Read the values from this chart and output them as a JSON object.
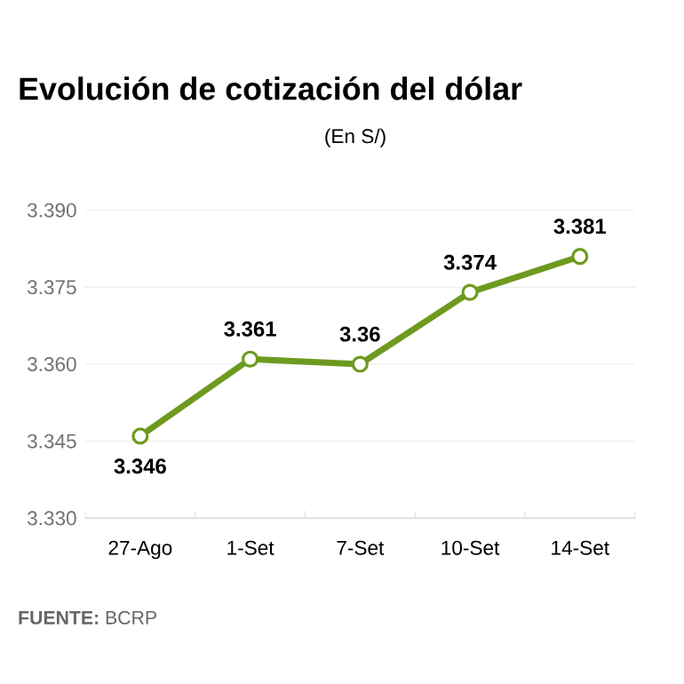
{
  "chart_data": {
    "type": "line",
    "title": "Evolución de cotización del dólar",
    "subtitle": "(En S/)",
    "categories": [
      "27-Ago",
      "1-Set",
      "7-Set",
      "10-Set",
      "14-Set"
    ],
    "values": [
      3.346,
      3.361,
      3.36,
      3.374,
      3.381
    ],
    "color": "#6e9a1f",
    "marker": "circle",
    "data_labels": true,
    "grid": "y",
    "ylim": [
      3.33,
      3.39
    ],
    "yticks": [
      {
        "value": 3.33,
        "label": "3.330"
      },
      {
        "value": 3.345,
        "label": "3.345"
      },
      {
        "value": 3.36,
        "label": "3.360"
      },
      {
        "value": 3.375,
        "label": "3.375"
      },
      {
        "value": 3.39,
        "label": "3.390"
      }
    ],
    "annotations": [
      "**FUENTE:** BCRP"
    ]
  }
}
